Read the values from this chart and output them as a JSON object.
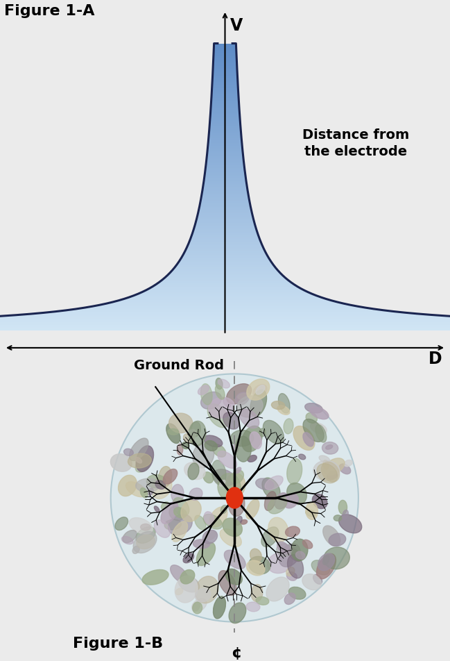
{
  "fig_label_a": "Figure 1-A",
  "fig_label_b": "Figure 1-B",
  "label_v": "V",
  "label_d": "D",
  "label_c": "¢",
  "label_distance": "Distance from\nthe electrode",
  "label_ground_rod": "Ground Rod",
  "bg_color": "#ebebeb",
  "curve_color": "#1a2550",
  "electrode_color": "#e03010",
  "rock_colors_purple": [
    "#9a8fa0",
    "#b0a0b2",
    "#7a6a7c",
    "#c0b0c2",
    "#a89aaa"
  ],
  "rock_colors_green": [
    "#8a9a80",
    "#a0b090",
    "#7a8a70",
    "#9aaa8a"
  ],
  "rock_colors_beige": [
    "#c8c0a0",
    "#d0c8a8",
    "#b8b090",
    "#c0b8a0"
  ],
  "rock_colors_gray": [
    "#b0b0b0",
    "#c8c8c8",
    "#a0a0a0",
    "#d0d0d0"
  ],
  "rock_colors_brown": [
    "#8a7070",
    "#a08080",
    "#907878"
  ]
}
